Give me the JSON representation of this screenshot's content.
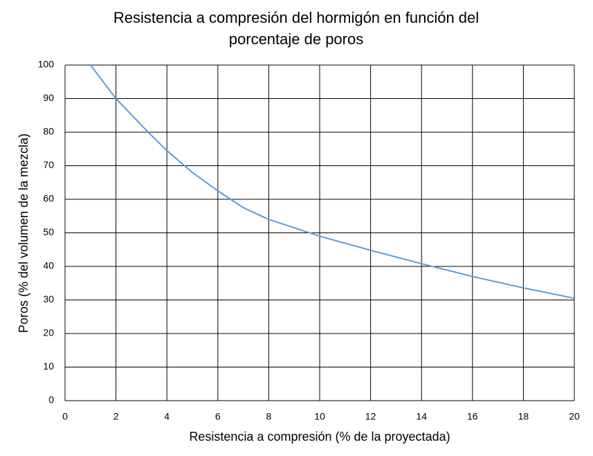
{
  "chart_data": {
    "type": "line",
    "title": "Resistencia a compresión del hormigón en función del porcentaje de poros",
    "xlabel": "Resistencia a compresión (% de la proyectada)",
    "ylabel": "Poros (% del volumen de la mezcla)",
    "x": [
      1,
      2,
      3.2,
      4,
      5,
      6,
      7,
      8,
      10,
      12,
      14,
      16,
      18,
      20
    ],
    "series": [
      {
        "name": "Poros",
        "color": "#5b9bd5",
        "values": [
          100,
          90,
          80.5,
          74.5,
          68,
          62.5,
          57.5,
          54,
          49,
          44.8,
          40.8,
          37,
          33.6,
          30.5
        ]
      }
    ],
    "xlim": [
      0,
      20
    ],
    "xticks": [
      0,
      2,
      4,
      6,
      8,
      10,
      12,
      14,
      16,
      18,
      20
    ],
    "ylim": [
      0,
      100
    ],
    "yticks": [
      0,
      10,
      20,
      30,
      40,
      50,
      60,
      70,
      80,
      90,
      100
    ],
    "grid": true
  }
}
